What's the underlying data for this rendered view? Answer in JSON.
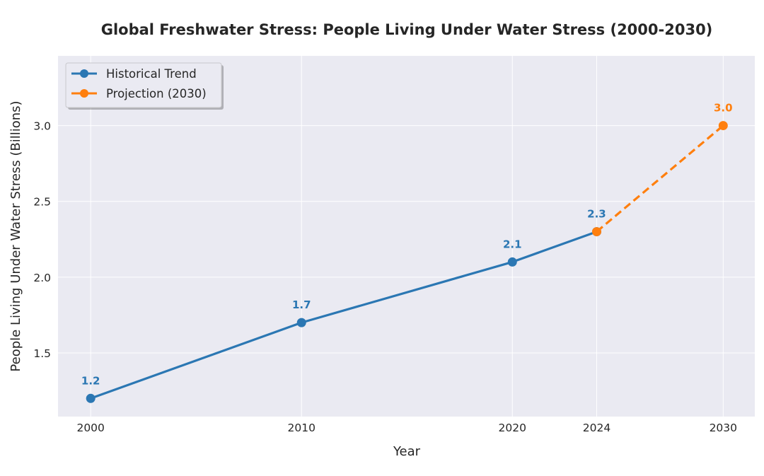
{
  "chart_data": {
    "type": "line",
    "title": "Global Freshwater Stress: People Living Under Water Stress (2000-2030)",
    "xlabel": "Year",
    "ylabel": "People Living Under Water Stress (Billions)",
    "xlim": [
      1998.45,
      2031.5
    ],
    "ylim": [
      1.08,
      3.46
    ],
    "xticks": [
      2000,
      2010,
      2020,
      2024,
      2030
    ],
    "xtick_labels": [
      "2000",
      "2010",
      "2020",
      "2024",
      "2030"
    ],
    "yticks": [
      1.5,
      2.0,
      2.5,
      3.0
    ],
    "ytick_labels": [
      "1.5",
      "2.0",
      "2.5",
      "3.0"
    ],
    "grid": true,
    "legend_position": "top-left",
    "series": [
      {
        "name": "Historical Trend",
        "color": "#2b77b3",
        "style": "solid",
        "x": [
          2000,
          2010,
          2020,
          2024
        ],
        "y": [
          1.2,
          1.7,
          2.1,
          2.3
        ],
        "labels": [
          "1.2",
          "1.7",
          "2.1",
          "2.3"
        ]
      },
      {
        "name": "Projection (2030)",
        "color": "#ff7f0e",
        "style": "dashed",
        "x": [
          2024,
          2030
        ],
        "y": [
          2.3,
          3.0
        ],
        "labels": [
          null,
          "3.0"
        ]
      }
    ]
  },
  "colors": {
    "plot_background": "#eaeaf2",
    "grid": "#ffffff",
    "text": "#262626"
  }
}
